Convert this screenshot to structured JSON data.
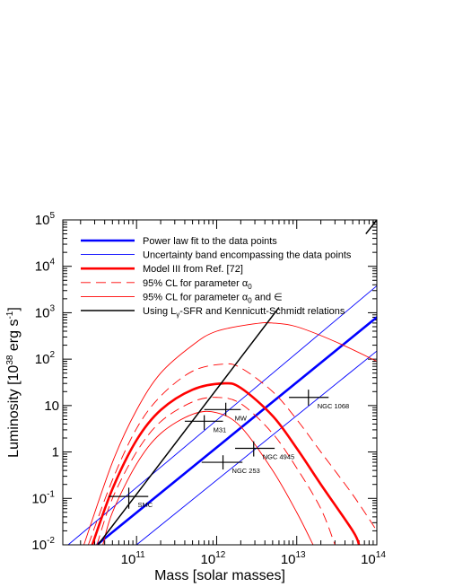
{
  "chart_data": {
    "type": "line",
    "xscale": "log",
    "yscale": "log",
    "xlim": [
      12000000000.0,
      100000000000000.0
    ],
    "ylim": [
      0.01,
      100000
    ],
    "xlabel": "Mass [solar masses]",
    "ylabel": "Luminosity [10",
    "ylabel_sup1": "38",
    "ylabel_mid": " erg s",
    "ylabel_sup2": "-1",
    "ylabel_end": "]",
    "x_ticks": [
      {
        "value": 100000000000.0,
        "base": "10",
        "exp": "11"
      },
      {
        "value": 1000000000000.0,
        "base": "10",
        "exp": "12"
      },
      {
        "value": 10000000000000.0,
        "base": "10",
        "exp": "13"
      },
      {
        "value": 100000000000000.0,
        "base": "10",
        "exp": "14"
      }
    ],
    "y_ticks": [
      {
        "value": 0.01,
        "base": "10",
        "exp": "-2"
      },
      {
        "value": 0.1,
        "base": "10",
        "exp": "-1"
      },
      {
        "value": 1,
        "base": "1",
        "exp": ""
      },
      {
        "value": 10,
        "base": "10",
        "exp": ""
      },
      {
        "value": 100,
        "base": "10",
        "exp": "2"
      },
      {
        "value": 1000,
        "base": "10",
        "exp": "3"
      },
      {
        "value": 10000,
        "base": "10",
        "exp": "4"
      },
      {
        "value": 100000,
        "base": "10",
        "exp": "5"
      }
    ],
    "legend_position": "top-left",
    "series": [
      {
        "name": "Power law fit to the data points",
        "color": "#0000ff",
        "width": "thick",
        "dash": "solid",
        "points": [
          [
            32000000000.0,
            0.01
          ],
          [
            100000000000000.0,
            800
          ]
        ]
      },
      {
        "name": "Uncertainty band encompassing the data points",
        "color": "#0000ff",
        "width": "thin",
        "dash": "solid",
        "points": [
          [
            14000000000.0,
            0.01
          ],
          [
            100000000000000.0,
            3800
          ]
        ]
      },
      {
        "name": "",
        "color": "#0000ff",
        "width": "thin",
        "dash": "solid",
        "points": [
          [
            100000000000.0,
            0.01
          ],
          [
            100000000000000.0,
            150
          ]
        ]
      },
      {
        "name": "Model III from Ref. [72]",
        "color": "#ff0000",
        "width": "thick",
        "dash": "solid",
        "points": [
          [
            28000000000.0,
            0.01
          ],
          [
            50000000000.0,
            0.16
          ],
          [
            100000000000.0,
            1.8
          ],
          [
            200000000000.0,
            8
          ],
          [
            500000000000.0,
            22
          ],
          [
            1200000000000.0,
            30
          ],
          [
            2000000000000.0,
            24
          ],
          [
            5000000000000.0,
            6
          ],
          [
            10000000000000.0,
            1.2
          ],
          [
            20000000000000.0,
            0.2
          ],
          [
            50000000000000.0,
            0.02
          ],
          [
            60000000000000.0,
            0.01
          ]
        ]
      },
      {
        "name": "95% CL for parameter α0",
        "color": "#ff0000",
        "width": "thin",
        "dash": "dashed",
        "points": [
          [
            25000000000.0,
            0.01
          ],
          [
            50000000000.0,
            0.25
          ],
          [
            100000000000.0,
            3.2
          ],
          [
            200000000000.0,
            16
          ],
          [
            500000000000.0,
            55
          ],
          [
            1200000000000.0,
            78
          ],
          [
            2000000000000.0,
            65
          ],
          [
            5000000000000.0,
            20
          ],
          [
            10000000000000.0,
            5
          ],
          [
            20000000000000.0,
            1
          ],
          [
            50000000000000.0,
            0.12
          ],
          [
            100000000000000.0,
            0.02
          ]
        ]
      },
      {
        "name": "",
        "color": "#ff0000",
        "width": "thin",
        "dash": "dashed",
        "points": [
          [
            32000000000.0,
            0.01
          ],
          [
            50000000000.0,
            0.1
          ],
          [
            100000000000.0,
            1.0
          ],
          [
            200000000000.0,
            4.5
          ],
          [
            500000000000.0,
            12
          ],
          [
            1000000000000.0,
            15
          ],
          [
            2000000000000.0,
            11
          ],
          [
            5000000000000.0,
            2.5
          ],
          [
            10000000000000.0,
            0.45
          ],
          [
            20000000000000.0,
            0.06
          ],
          [
            30000000000000.0,
            0.01
          ]
        ]
      },
      {
        "name": "95% CL for parameter α0 and ∈",
        "color": "#ff0000",
        "width": "thin",
        "dash": "solid",
        "points": [
          [
            22000000000.0,
            0.01
          ],
          [
            50000000000.0,
            0.6
          ],
          [
            100000000000.0,
            8
          ],
          [
            200000000000.0,
            50
          ],
          [
            500000000000.0,
            200
          ],
          [
            1000000000000.0,
            400
          ],
          [
            3000000000000.0,
            580
          ],
          [
            5000000000000.0,
            600
          ],
          [
            10000000000000.0,
            500
          ],
          [
            30000000000000.0,
            240
          ],
          [
            100000000000000.0,
            90
          ]
        ]
      },
      {
        "name": "",
        "color": "#ff0000",
        "width": "thin",
        "dash": "solid",
        "points": [
          [
            38000000000.0,
            0.01
          ],
          [
            50000000000.0,
            0.05
          ],
          [
            100000000000.0,
            0.55
          ],
          [
            200000000000.0,
            2.5
          ],
          [
            500000000000.0,
            6.5
          ],
          [
            1000000000000.0,
            7
          ],
          [
            2000000000000.0,
            3.5
          ],
          [
            5000000000000.0,
            0.4
          ],
          [
            10000000000000.0,
            0.05
          ],
          [
            16000000000000.0,
            0.01
          ]
        ]
      },
      {
        "name": "Using Lγ-SFR and Kennicutt-Schmidt relations",
        "color": "#000000",
        "width": "medium",
        "dash": "solid",
        "points": [
          [
            33000000000.0,
            0.01
          ],
          [
            6000000000000.0,
            1300
          ]
        ]
      },
      {
        "name": "",
        "color": "#000000",
        "width": "medium",
        "dash": "solid",
        "points": [
          [
            73000000000000.0,
            50000
          ],
          [
            100000000000000.0,
            100000
          ]
        ]
      }
    ],
    "data_points": [
      {
        "label": "SMC",
        "x": 80000000000.0,
        "y": 0.11,
        "xerr": [
          45000000000.0,
          140000000000.0
        ],
        "yerr": [
          0.06,
          0.17
        ]
      },
      {
        "label": "M31",
        "x": 700000000000.0,
        "y": 4.6,
        "xerr": [
          400000000000.0,
          1200000000000.0
        ],
        "yerr": [
          3.0,
          6.2
        ]
      },
      {
        "label": "MW",
        "x": 1300000000000.0,
        "y": 8.2,
        "xerr": [
          700000000000.0,
          2000000000000.0
        ],
        "yerr": [
          6.0,
          11.5
        ]
      },
      {
        "label": "NGC 253",
        "x": 1200000000000.0,
        "y": 0.6,
        "xerr": [
          650000000000.0,
          2100000000000.0
        ],
        "yerr": [
          0.42,
          0.85
        ]
      },
      {
        "label": "NGC 4945",
        "x": 2900000000000.0,
        "y": 1.2,
        "xerr": [
          1700000000000.0,
          5300000000000.0
        ],
        "yerr": [
          0.8,
          1.7
        ]
      },
      {
        "label": "NGC 1068",
        "x": 14000000000000.0,
        "y": 15,
        "xerr": [
          8000000000000.0,
          25000000000000.0
        ],
        "yerr": [
          10,
          22
        ]
      }
    ]
  },
  "legend_entries": [
    {
      "text": "Power law fit to the data points",
      "color": "#0000ff",
      "width": 2.6,
      "dash": "solid"
    },
    {
      "text": "Uncertainty band encompassing the data points",
      "color": "#0000ff",
      "width": 0.9,
      "dash": "solid"
    },
    {
      "text": "Model III from Ref. [72]",
      "color": "#ff0000",
      "width": 2.6,
      "dash": "solid"
    },
    {
      "text": "95% CL for parameter α",
      "sub": "0",
      "color": "#ff0000",
      "width": 0.9,
      "dash": "dashed"
    },
    {
      "text": "95% CL for parameter α",
      "sub": "0",
      "suffix": " and ∈",
      "color": "#ff0000",
      "width": 0.9,
      "dash": "solid"
    },
    {
      "text": "Using L",
      "sub": "γ",
      "suffix": "-SFR and Kennicutt-Schmidt relations",
      "color": "#000000",
      "width": 1.5,
      "dash": "solid"
    }
  ]
}
